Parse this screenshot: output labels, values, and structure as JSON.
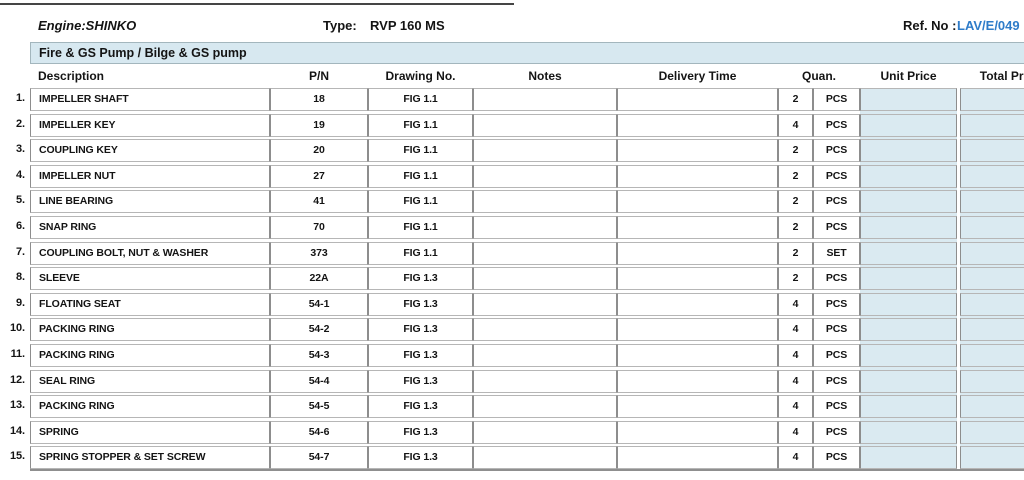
{
  "page": {
    "engine": "Engine:SHINKO",
    "type_label": "Type:",
    "type_value": "RVP 160 MS",
    "ref_label": "Ref. No :",
    "ref_value": "LAV/E/049",
    "section_title": "Fire & GS Pump / Bilge & GS pump"
  },
  "colors": {
    "section_fill": "#d7e8f0",
    "price_column_fill": "#daeaf1",
    "ref_no_blue": "#2e7cc9"
  },
  "table": {
    "columns": [
      "Description",
      "P/N",
      "Drawing No.",
      "Notes",
      "Delivery Time",
      "Quan.",
      "Unit Price",
      "Total Price"
    ],
    "rows": [
      {
        "no": "1.",
        "description": "IMPELLER SHAFT",
        "pn": "18",
        "drawing": "FIG 1.1",
        "notes": "",
        "delivery": "",
        "qty": "2",
        "unit": "PCS",
        "unit_price": "",
        "total_price": ""
      },
      {
        "no": "2.",
        "description": "IMPELLER KEY",
        "pn": "19",
        "drawing": "FIG 1.1",
        "notes": "",
        "delivery": "",
        "qty": "4",
        "unit": "PCS",
        "unit_price": "",
        "total_price": ""
      },
      {
        "no": "3.",
        "description": "COUPLING KEY",
        "pn": "20",
        "drawing": "FIG 1.1",
        "notes": "",
        "delivery": "",
        "qty": "2",
        "unit": "PCS",
        "unit_price": "",
        "total_price": ""
      },
      {
        "no": "4.",
        "description": "IMPELLER NUT",
        "pn": "27",
        "drawing": "FIG 1.1",
        "notes": "",
        "delivery": "",
        "qty": "2",
        "unit": "PCS",
        "unit_price": "",
        "total_price": ""
      },
      {
        "no": "5.",
        "description": "LINE BEARING",
        "pn": "41",
        "drawing": "FIG 1.1",
        "notes": "",
        "delivery": "",
        "qty": "2",
        "unit": "PCS",
        "unit_price": "",
        "total_price": ""
      },
      {
        "no": "6.",
        "description": "SNAP RING",
        "pn": "70",
        "drawing": "FIG 1.1",
        "notes": "",
        "delivery": "",
        "qty": "2",
        "unit": "PCS",
        "unit_price": "",
        "total_price": ""
      },
      {
        "no": "7.",
        "description": "COUPLING BOLT, NUT & WASHER",
        "pn": "373",
        "drawing": "FIG 1.1",
        "notes": "",
        "delivery": "",
        "qty": "2",
        "unit": "SET",
        "unit_price": "",
        "total_price": ""
      },
      {
        "no": "8.",
        "description": "SLEEVE",
        "pn": "22A",
        "drawing": "FIG 1.3",
        "notes": "",
        "delivery": "",
        "qty": "2",
        "unit": "PCS",
        "unit_price": "",
        "total_price": ""
      },
      {
        "no": "9.",
        "description": "FLOATING SEAT",
        "pn": "54-1",
        "drawing": "FIG 1.3",
        "notes": "",
        "delivery": "",
        "qty": "4",
        "unit": "PCS",
        "unit_price": "",
        "total_price": ""
      },
      {
        "no": "10.",
        "description": "PACKING RING",
        "pn": "54-2",
        "drawing": "FIG 1.3",
        "notes": "",
        "delivery": "",
        "qty": "4",
        "unit": "PCS",
        "unit_price": "",
        "total_price": ""
      },
      {
        "no": "11.",
        "description": "PACKING RING",
        "pn": "54-3",
        "drawing": "FIG 1.3",
        "notes": "",
        "delivery": "",
        "qty": "4",
        "unit": "PCS",
        "unit_price": "",
        "total_price": ""
      },
      {
        "no": "12.",
        "description": "SEAL RING",
        "pn": "54-4",
        "drawing": "FIG 1.3",
        "notes": "",
        "delivery": "",
        "qty": "4",
        "unit": "PCS",
        "unit_price": "",
        "total_price": ""
      },
      {
        "no": "13.",
        "description": "PACKING RING",
        "pn": "54-5",
        "drawing": "FIG 1.3",
        "notes": "",
        "delivery": "",
        "qty": "4",
        "unit": "PCS",
        "unit_price": "",
        "total_price": ""
      },
      {
        "no": "14.",
        "description": "SPRING",
        "pn": "54-6",
        "drawing": "FIG 1.3",
        "notes": "",
        "delivery": "",
        "qty": "4",
        "unit": "PCS",
        "unit_price": "",
        "total_price": ""
      },
      {
        "no": "15.",
        "description": "SPRING STOPPER & SET SCREW",
        "pn": "54-7",
        "drawing": "FIG 1.3",
        "notes": "",
        "delivery": "",
        "qty": "4",
        "unit": "PCS",
        "unit_price": "",
        "total_price": ""
      }
    ]
  }
}
